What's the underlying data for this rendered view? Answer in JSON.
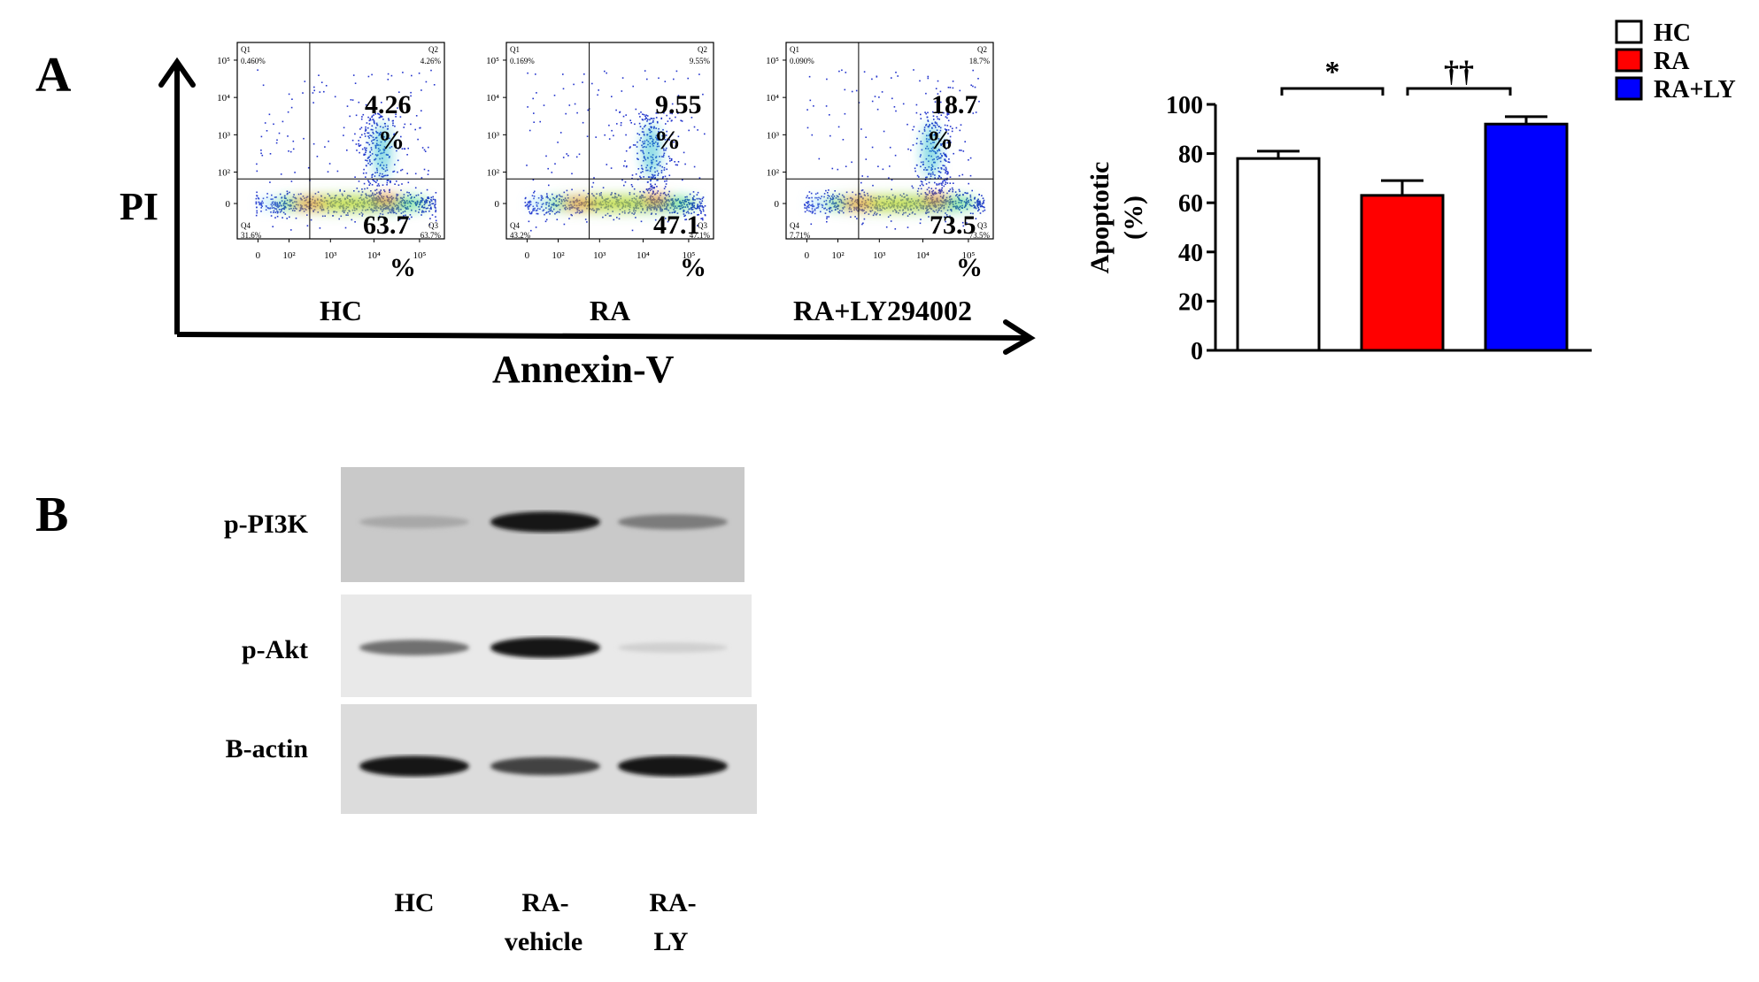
{
  "panel_a": {
    "letter": "A",
    "y_axis_label": "PI",
    "x_axis_label": "Annexin-V",
    "flow_plots": [
      {
        "group": "HC",
        "q1": "Q1",
        "q2": "Q2",
        "q3": "Q3",
        "q4": "Q4",
        "q1_pct": "0.460%",
        "q2_pct": "4.26%",
        "q3_pct": "63.7%",
        "q4_pct": "31.6%",
        "big_upper_num": "4.26",
        "big_upper_unit": "%",
        "big_lower_num": "63.7",
        "big_lower_unit": "%",
        "y_ticks": [
          "10⁵",
          "10⁴",
          "10³",
          "10²",
          "0"
        ],
        "x_ticks": [
          "0",
          "10²",
          "10³",
          "10⁴",
          "10⁵"
        ]
      },
      {
        "group": "RA",
        "q1": "Q1",
        "q2": "Q2",
        "q3": "Q3",
        "q4": "Q4",
        "q1_pct": "0.169%",
        "q2_pct": "9.55%",
        "q3_pct": "47.1%",
        "q4_pct": "43.2%",
        "big_upper_num": "9.55",
        "big_upper_unit": "%",
        "big_lower_num": "47.1",
        "big_lower_unit": "%",
        "y_ticks": [
          "10⁵",
          "10⁴",
          "10³",
          "10²",
          "0"
        ],
        "x_ticks": [
          "0",
          "10²",
          "10³",
          "10⁴",
          "10⁵"
        ]
      },
      {
        "group": "RA+LY294002",
        "q1": "Q1",
        "q2": "Q2",
        "q3": "Q3",
        "q4": "Q4",
        "q1_pct": "0.090%",
        "q2_pct": "18.7%",
        "q3_pct": "73.5%",
        "q4_pct": "7.71%",
        "big_upper_num": "18.7",
        "big_upper_unit": "%",
        "big_lower_num": "73.5",
        "big_lower_unit": "%",
        "y_ticks": [
          "10⁵",
          "10⁴",
          "10³",
          "10²",
          "0"
        ],
        "x_ticks": [
          "0",
          "10²",
          "10³",
          "10⁴",
          "10⁵"
        ]
      }
    ]
  },
  "chart_data": {
    "type": "bar",
    "categories": [
      "HC",
      "RA",
      "RA+LY"
    ],
    "values": [
      78,
      63,
      92
    ],
    "errors": [
      3,
      6,
      3
    ],
    "colors": [
      "#ffffff",
      "#ff0000",
      "#0000ff"
    ],
    "ylabel_line1": "Apoptotic",
    "ylabel_line2": "(%)",
    "ylim": [
      0,
      100
    ],
    "y_ticks": [
      0,
      20,
      40,
      60,
      80,
      100
    ],
    "legend_position": "top-right",
    "legend": [
      "HC",
      "RA",
      "RA+LY"
    ],
    "significance": [
      {
        "from": "HC",
        "to": "RA",
        "mark": "*"
      },
      {
        "from": "RA",
        "to": "RA+LY",
        "mark": "††"
      }
    ]
  },
  "panel_b": {
    "letter": "B",
    "blots": [
      {
        "label": "p-PI3K",
        "intensity": [
          0.3,
          0.95,
          0.5
        ]
      },
      {
        "label": "p-Akt",
        "intensity": [
          0.55,
          0.95,
          0.12
        ]
      },
      {
        "label": "B-actin",
        "intensity": [
          0.95,
          0.75,
          0.95
        ]
      }
    ],
    "lanes": [
      {
        "line1": "HC",
        "line2": ""
      },
      {
        "line1": "RA-",
        "line2": "vehicle"
      },
      {
        "line1": "RA-",
        "line2": "LY"
      }
    ]
  }
}
